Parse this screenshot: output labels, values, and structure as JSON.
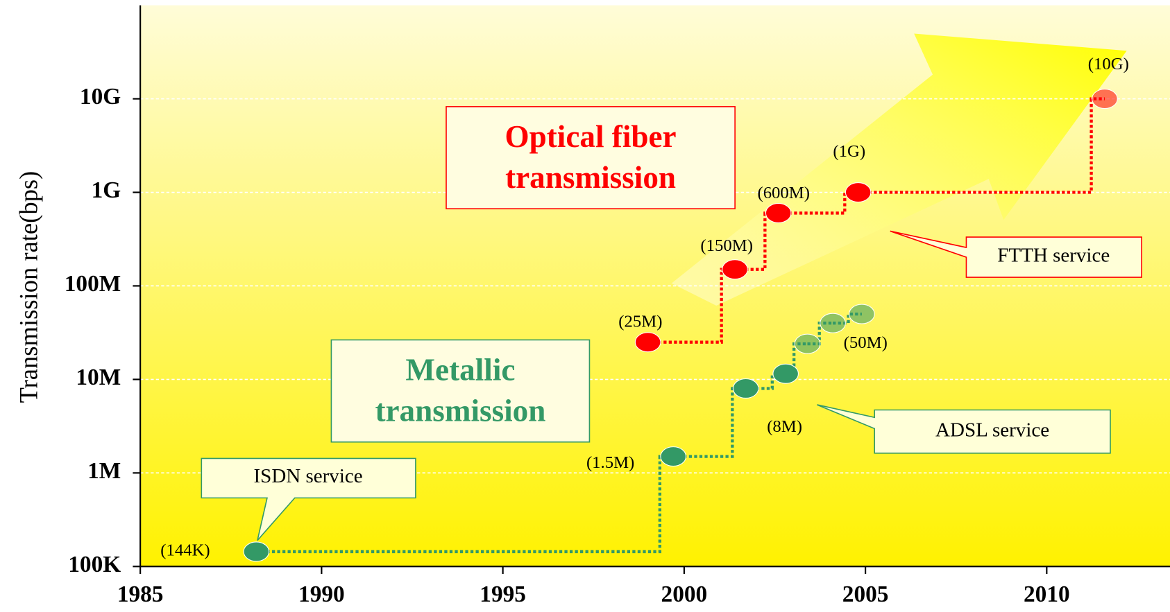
{
  "chart_data": {
    "type": "scatter",
    "y_label": "Transmission rate(bps)",
    "log_y": true,
    "grid": true,
    "xlim": [
      1985,
      2013.4
    ],
    "xticks": [
      1985,
      1990,
      1995,
      2000,
      2005,
      2010
    ],
    "ylim": [
      100000,
      100000000000
    ],
    "yticks": [
      {
        "value": 100000,
        "label": "100K"
      },
      {
        "value": 1000000,
        "label": "1M"
      },
      {
        "value": 10000000,
        "label": "10M"
      },
      {
        "value": 100000000,
        "label": "100M"
      },
      {
        "value": 1000000000,
        "label": "1G"
      },
      {
        "value": 10000000000,
        "label": "10G"
      }
    ],
    "series": [
      {
        "name": "Metallic transmission",
        "color": "#339966",
        "x": [
          1988.2,
          1999.7,
          2001.7,
          2002.8,
          2003.4,
          2004.1,
          2004.9
        ],
        "values": [
          144000,
          1500000,
          8000000,
          11500000,
          24000000,
          40000000,
          50000000
        ],
        "value_labels": [
          "(144K)",
          "(1.5M)",
          "(8M)",
          null,
          null,
          null,
          "(50M)"
        ]
      },
      {
        "name": "Optical fiber transmission",
        "color": "#ff0000",
        "x": [
          1999,
          2001.4,
          2002.6,
          2004.8,
          2011.6
        ],
        "values": [
          25000000,
          150000000,
          600000000,
          1000000000,
          10000000000
        ],
        "value_labels": [
          "(25M)",
          "(150M)",
          "(600M)",
          "(1G)",
          "(10G)"
        ]
      }
    ],
    "annotations": [
      {
        "text": "ISDN service"
      },
      {
        "text": "ADSL service"
      },
      {
        "text": "FTTH service"
      }
    ]
  }
}
